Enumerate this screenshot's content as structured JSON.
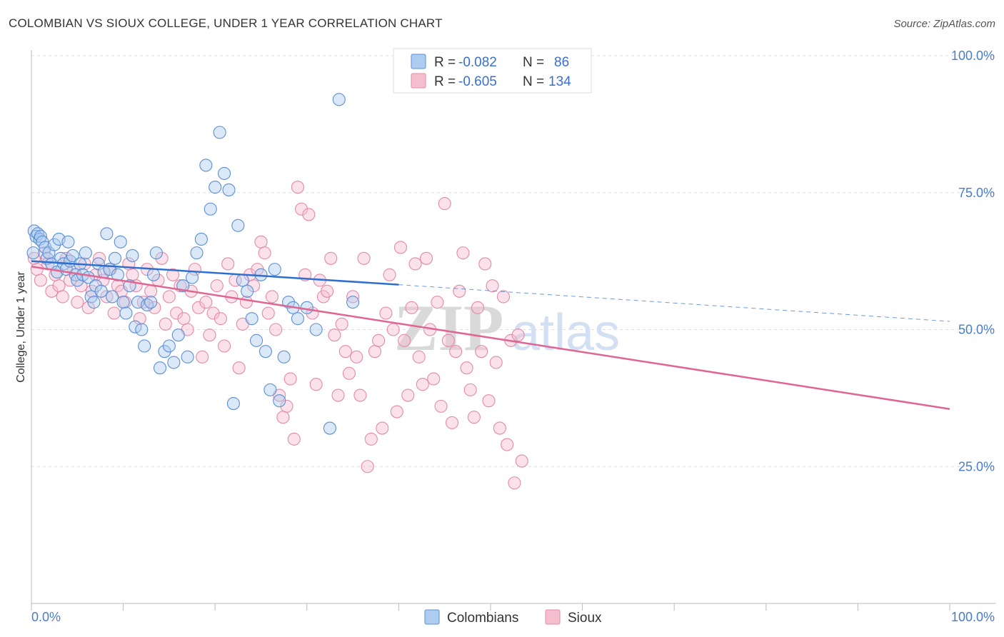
{
  "header": {
    "title": "COLOMBIAN VS SIOUX COLLEGE, UNDER 1 YEAR CORRELATION CHART",
    "source": "Source: ZipAtlas.com"
  },
  "watermark": {
    "zip": "ZIP",
    "atlas": "atlas"
  },
  "legend": {
    "r_label": "R =",
    "n_label": "N =",
    "colombians": {
      "r": "-0.082",
      "n": "86"
    },
    "sioux": {
      "r": "-0.605",
      "n": "134"
    }
  },
  "colors": {
    "colombians_fill": "#aecbf0",
    "colombians_stroke": "#5b8fd6",
    "colombians_line": "#2f6fd0",
    "sioux_fill": "#f6bfd0",
    "sioux_stroke": "#e48aa8",
    "sioux_line": "#e06592",
    "grid": "#dddddd",
    "axis": "#bbbbbb"
  },
  "chart_data": {
    "type": "scatter",
    "title": "COLOMBIAN VS SIOUX COLLEGE, UNDER 1 YEAR CORRELATION CHART",
    "xlabel": "",
    "ylabel": "College, Under 1 year",
    "xlim": [
      0,
      100
    ],
    "ylim": [
      0,
      100
    ],
    "x_tick_labels": [
      "0.0%",
      "100.0%"
    ],
    "y_tick_labels": [
      "25.0%",
      "50.0%",
      "75.0%",
      "100.0%"
    ],
    "y_ticks": [
      25,
      50,
      75,
      100
    ],
    "grid": true,
    "legend_position": "top-center",
    "series": [
      {
        "name": "Colombians",
        "r": -0.082,
        "n": 86,
        "trend": {
          "x0": 0,
          "y0": 62.5,
          "x1": 40,
          "y1": 58.2,
          "dashed_to_x": 100,
          "dashed_to_y": 51.5
        },
        "points": [
          [
            0.2,
            64
          ],
          [
            0.3,
            68
          ],
          [
            0.5,
            67
          ],
          [
            0.7,
            67.5
          ],
          [
            0.9,
            66.5
          ],
          [
            1.0,
            67
          ],
          [
            1.2,
            66
          ],
          [
            1.5,
            65
          ],
          [
            1.7,
            63
          ],
          [
            1.9,
            64
          ],
          [
            2.2,
            62
          ],
          [
            2.5,
            65.5
          ],
          [
            2.8,
            60.5
          ],
          [
            3.0,
            66.5
          ],
          [
            3.2,
            63
          ],
          [
            3.5,
            62
          ],
          [
            3.8,
            61
          ],
          [
            4.0,
            66
          ],
          [
            4.2,
            62.5
          ],
          [
            4.5,
            63.5
          ],
          [
            4.8,
            60
          ],
          [
            5.0,
            59
          ],
          [
            5.3,
            62
          ],
          [
            5.6,
            60
          ],
          [
            5.9,
            64
          ],
          [
            6.2,
            59.5
          ],
          [
            6.5,
            56
          ],
          [
            6.8,
            55
          ],
          [
            7.0,
            58
          ],
          [
            7.3,
            62
          ],
          [
            7.6,
            57
          ],
          [
            7.9,
            60.5
          ],
          [
            8.2,
            67.5
          ],
          [
            8.5,
            61
          ],
          [
            8.8,
            56
          ],
          [
            9.1,
            63
          ],
          [
            9.4,
            60
          ],
          [
            9.7,
            66
          ],
          [
            10,
            55
          ],
          [
            10.3,
            53
          ],
          [
            10.7,
            58
          ],
          [
            11.0,
            63.5
          ],
          [
            11.3,
            50.5
          ],
          [
            11.6,
            55
          ],
          [
            12,
            50
          ],
          [
            12.3,
            47
          ],
          [
            12.6,
            54.5
          ],
          [
            13,
            55
          ],
          [
            13.3,
            60
          ],
          [
            13.6,
            64
          ],
          [
            14,
            43
          ],
          [
            14.5,
            46
          ],
          [
            15,
            47
          ],
          [
            15.5,
            44
          ],
          [
            16,
            49
          ],
          [
            16.5,
            58
          ],
          [
            17,
            45
          ],
          [
            17.5,
            59.5
          ],
          [
            18,
            64
          ],
          [
            18.5,
            66.5
          ],
          [
            19,
            80
          ],
          [
            19.5,
            72
          ],
          [
            20,
            76
          ],
          [
            20.5,
            86
          ],
          [
            21,
            78.5
          ],
          [
            21.5,
            75.5
          ],
          [
            22,
            36.5
          ],
          [
            22.5,
            69
          ],
          [
            23,
            59
          ],
          [
            23.5,
            57
          ],
          [
            24,
            52
          ],
          [
            24.5,
            48
          ],
          [
            25,
            60
          ],
          [
            25.5,
            46
          ],
          [
            26,
            39
          ],
          [
            26.5,
            61
          ],
          [
            27,
            37
          ],
          [
            27.5,
            45
          ],
          [
            28,
            55
          ],
          [
            28.5,
            54
          ],
          [
            29,
            52
          ],
          [
            30,
            54
          ],
          [
            31,
            50
          ],
          [
            32.5,
            32
          ],
          [
            33.5,
            92
          ],
          [
            35,
            55
          ]
        ]
      },
      {
        "name": "Sioux",
        "r": -0.605,
        "n": 134,
        "trend": {
          "x0": 0,
          "y0": 61.5,
          "x1": 100,
          "y1": 35.5
        },
        "points": [
          [
            0.3,
            63
          ],
          [
            0.6,
            61
          ],
          [
            1,
            59
          ],
          [
            1.4,
            64
          ],
          [
            1.8,
            62
          ],
          [
            2.2,
            57
          ],
          [
            2.6,
            60
          ],
          [
            3,
            58
          ],
          [
            3.4,
            56
          ],
          [
            3.8,
            63
          ],
          [
            4.2,
            59
          ],
          [
            4.6,
            61
          ],
          [
            5,
            55
          ],
          [
            5.4,
            58
          ],
          [
            5.8,
            62
          ],
          [
            6.2,
            54
          ],
          [
            6.6,
            57
          ],
          [
            7,
            60
          ],
          [
            7.4,
            63
          ],
          [
            7.8,
            59
          ],
          [
            8.2,
            56
          ],
          [
            8.6,
            61
          ],
          [
            9,
            53
          ],
          [
            9.4,
            58
          ],
          [
            9.8,
            57
          ],
          [
            10.2,
            55
          ],
          [
            10.6,
            62
          ],
          [
            11,
            60
          ],
          [
            11.4,
            58
          ],
          [
            11.8,
            52
          ],
          [
            12.2,
            55
          ],
          [
            12.6,
            61
          ],
          [
            13,
            57
          ],
          [
            13.4,
            54
          ],
          [
            13.8,
            59
          ],
          [
            14.2,
            63
          ],
          [
            14.6,
            51
          ],
          [
            15,
            56
          ],
          [
            15.4,
            60
          ],
          [
            15.8,
            53
          ],
          [
            16.2,
            58
          ],
          [
            16.6,
            52
          ],
          [
            17,
            50
          ],
          [
            17.4,
            57
          ],
          [
            17.8,
            61
          ],
          [
            18.2,
            54
          ],
          [
            18.6,
            45
          ],
          [
            19,
            55
          ],
          [
            19.4,
            49
          ],
          [
            19.8,
            53
          ],
          [
            20.2,
            58
          ],
          [
            20.6,
            52
          ],
          [
            21,
            47
          ],
          [
            21.4,
            62
          ],
          [
            21.8,
            56
          ],
          [
            22.2,
            59
          ],
          [
            22.6,
            43
          ],
          [
            23,
            51
          ],
          [
            23.4,
            55
          ],
          [
            23.8,
            60
          ],
          [
            24.2,
            58
          ],
          [
            24.6,
            61
          ],
          [
            25,
            66
          ],
          [
            25.4,
            64
          ],
          [
            25.8,
            53
          ],
          [
            26.2,
            56
          ],
          [
            26.6,
            50
          ],
          [
            27,
            38
          ],
          [
            27.4,
            34
          ],
          [
            27.8,
            36
          ],
          [
            28.2,
            41
          ],
          [
            28.6,
            30
          ],
          [
            29,
            76
          ],
          [
            29.4,
            72
          ],
          [
            29.8,
            60
          ],
          [
            30.2,
            71
          ],
          [
            30.6,
            53
          ],
          [
            31,
            40
          ],
          [
            31.4,
            59
          ],
          [
            31.8,
            56
          ],
          [
            32.2,
            57
          ],
          [
            32.6,
            63
          ],
          [
            33,
            49
          ],
          [
            33.4,
            38
          ],
          [
            33.8,
            51
          ],
          [
            34.2,
            46
          ],
          [
            34.6,
            42
          ],
          [
            35,
            56
          ],
          [
            35.4,
            45
          ],
          [
            35.8,
            38
          ],
          [
            36.2,
            63
          ],
          [
            36.6,
            25
          ],
          [
            37,
            30
          ],
          [
            37.4,
            46
          ],
          [
            37.8,
            48
          ],
          [
            38.2,
            32
          ],
          [
            38.6,
            53
          ],
          [
            39,
            60
          ],
          [
            39.4,
            50
          ],
          [
            39.8,
            35
          ],
          [
            40.2,
            65
          ],
          [
            40.6,
            48
          ],
          [
            41,
            38
          ],
          [
            41.4,
            54
          ],
          [
            41.8,
            62
          ],
          [
            42.2,
            45
          ],
          [
            42.6,
            40
          ],
          [
            43,
            63
          ],
          [
            43.4,
            50
          ],
          [
            43.8,
            41
          ],
          [
            44.2,
            55
          ],
          [
            44.6,
            36
          ],
          [
            45,
            73
          ],
          [
            45.4,
            48
          ],
          [
            45.8,
            33
          ],
          [
            46.2,
            46
          ],
          [
            46.6,
            57
          ],
          [
            47,
            64
          ],
          [
            47.4,
            43
          ],
          [
            47.8,
            39
          ],
          [
            48.2,
            34
          ],
          [
            48.6,
            54
          ],
          [
            49,
            46
          ],
          [
            49.4,
            62
          ],
          [
            49.8,
            37
          ],
          [
            50.2,
            58
          ],
          [
            50.6,
            44
          ],
          [
            51,
            32
          ],
          [
            51.4,
            56
          ],
          [
            51.8,
            29
          ],
          [
            52.2,
            48
          ],
          [
            52.6,
            22
          ],
          [
            53,
            49
          ],
          [
            53.4,
            26
          ]
        ]
      }
    ]
  },
  "bottom_legend": {
    "colombians": "Colombians",
    "sioux": "Sioux"
  },
  "axis": {
    "ylabel": "College, Under 1 year",
    "x_min_label": "0.0%",
    "x_max_label": "100.0%"
  }
}
